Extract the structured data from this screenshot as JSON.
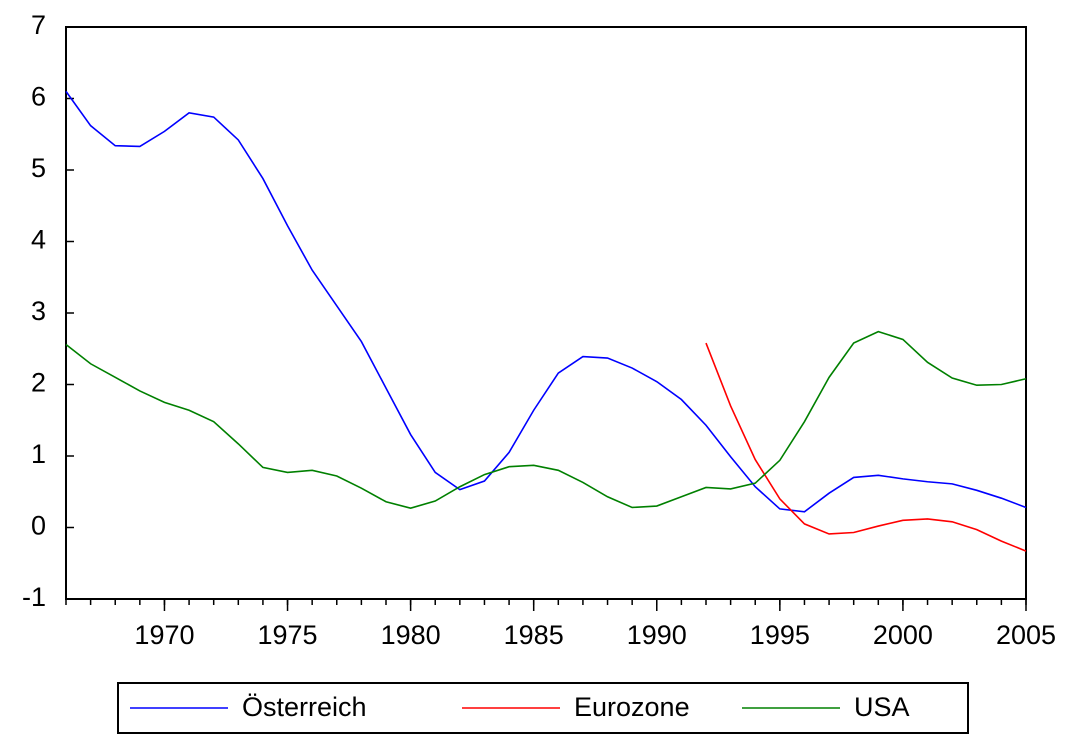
{
  "chart_data": {
    "type": "line",
    "x": [
      1966,
      1967,
      1968,
      1969,
      1970,
      1971,
      1972,
      1973,
      1974,
      1975,
      1976,
      1977,
      1978,
      1979,
      1980,
      1981,
      1982,
      1983,
      1984,
      1985,
      1986,
      1987,
      1988,
      1989,
      1990,
      1991,
      1992,
      1993,
      1994,
      1995,
      1996,
      1997,
      1998,
      1999,
      2000,
      2001,
      2002,
      2003,
      2004,
      2005
    ],
    "series": [
      {
        "name": "Österreich",
        "color": "#0000ff",
        "values": [
          6.1,
          5.62,
          5.34,
          5.33,
          5.54,
          5.8,
          5.74,
          5.42,
          4.88,
          4.22,
          3.6,
          3.1,
          2.6,
          1.95,
          1.3,
          0.77,
          0.53,
          0.65,
          1.05,
          1.64,
          2.16,
          2.39,
          2.37,
          2.23,
          2.04,
          1.79,
          1.43,
          0.99,
          0.57,
          0.26,
          0.22,
          0.48,
          0.7,
          0.73,
          0.68,
          0.64,
          0.61,
          0.52,
          0.41,
          0.28
        ]
      },
      {
        "name": "Eurozone",
        "color": "#ff0000",
        "values": [
          null,
          null,
          null,
          null,
          null,
          null,
          null,
          null,
          null,
          null,
          null,
          null,
          null,
          null,
          null,
          null,
          null,
          null,
          null,
          null,
          null,
          null,
          null,
          null,
          null,
          null,
          2.58,
          1.7,
          0.95,
          0.4,
          0.05,
          -0.09,
          -0.07,
          0.02,
          0.1,
          0.12,
          0.08,
          -0.03,
          -0.19,
          -0.33
        ]
      },
      {
        "name": "USA",
        "color": "#008000",
        "values": [
          2.56,
          2.29,
          2.1,
          1.91,
          1.75,
          1.64,
          1.48,
          1.17,
          0.84,
          0.77,
          0.8,
          0.72,
          0.55,
          0.36,
          0.27,
          0.37,
          0.57,
          0.74,
          0.85,
          0.87,
          0.8,
          0.63,
          0.43,
          0.28,
          0.3,
          0.43,
          0.56,
          0.54,
          0.62,
          0.94,
          1.48,
          2.1,
          2.58,
          2.74,
          2.63,
          2.31,
          2.09,
          1.99,
          2.0,
          2.08
        ]
      }
    ],
    "xlim": [
      1966,
      2005
    ],
    "xticks": [
      1970,
      1975,
      1980,
      1985,
      1990,
      1995,
      2000,
      2005
    ],
    "ylim": [
      -1,
      7
    ],
    "yticks": [
      -1,
      0,
      1,
      2,
      3,
      4,
      5,
      6,
      7
    ],
    "grid": false,
    "legend": "bottom"
  }
}
